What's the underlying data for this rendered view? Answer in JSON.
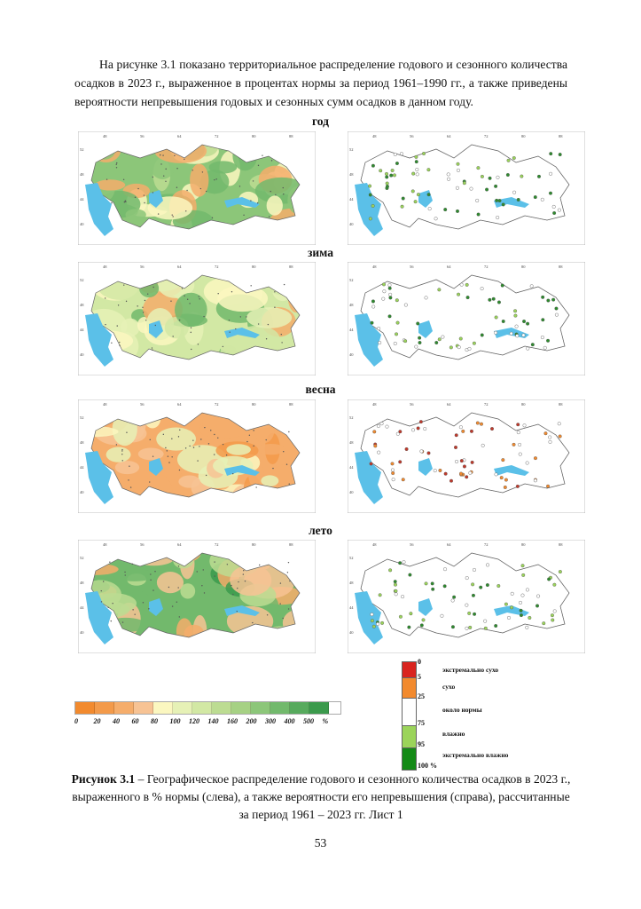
{
  "paragraph": "На рисунке 3.1 показано территориальное распределение годового и сезонного количества осадков в 2023 г., выраженное в процентах нормы за период 1961–1990 гг., а также приведены вероятности непревышения годовых и сезонных сумм осадков в данном году.",
  "seasons": [
    {
      "label": "год"
    },
    {
      "label": "зима"
    },
    {
      "label": "весна"
    },
    {
      "label": "лето"
    }
  ],
  "map_ticks": {
    "top": [
      "48",
      "56",
      "64",
      "72",
      "80",
      "88"
    ],
    "side": [
      "52",
      "48",
      "44",
      "40"
    ]
  },
  "legend_percent": {
    "ticks": [
      "0",
      "20",
      "40",
      "60",
      "80",
      "100",
      "120",
      "140",
      "160",
      "200",
      "300",
      "400",
      "500",
      "%"
    ],
    "colors": [
      "#f28a2e",
      "#f39a4a",
      "#f5ad6b",
      "#f7c394",
      "#fbf7c0",
      "#e6f1b6",
      "#d2e8a4",
      "#bcdc92",
      "#a6d184",
      "#8cc679",
      "#72b96c",
      "#57aa5d",
      "#3b9a4c"
    ]
  },
  "legend_probability": {
    "numbers": [
      "0",
      "5",
      "25",
      "75",
      "95",
      "100 %"
    ],
    "labels": [
      "экстремально сухо",
      "сухо",
      "около нормы",
      "влажно",
      "экстремально влажно"
    ],
    "colors": [
      "#d9241f",
      "#f28a2e",
      "#ffffff",
      "#9bd45a",
      "#138a16"
    ]
  },
  "caption": {
    "bold": "Рисунок 3.1",
    "text": " – Географическое распределение годового и сезонного количества осадков в 2023 г., выраженного в % нормы (слева), а также вероятности его непревышения (справа), рассчитанные за период 1961 – 2023 гг. Лист 1"
  },
  "page_number": "53"
}
